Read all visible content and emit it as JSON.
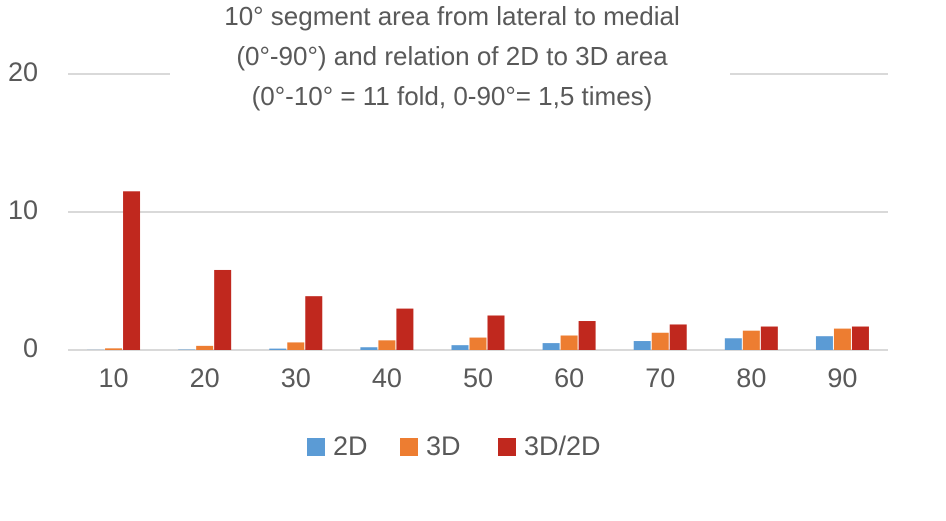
{
  "chart_data": {
    "type": "bar",
    "title": [
      "10° segment area from lateral to medial",
      "(0°-90°) and relation of 2D to 3D area",
      "(0°-10° = 11 fold, 0-90°= 1,5 times)"
    ],
    "categories": [
      "10",
      "20",
      "30",
      "40",
      "50",
      "60",
      "70",
      "80",
      "90"
    ],
    "series": [
      {
        "name": "2D",
        "color": "#5b9bd5",
        "values": [
          0.01,
          0.03,
          0.1,
          0.2,
          0.35,
          0.5,
          0.65,
          0.85,
          1.0
        ]
      },
      {
        "name": "3D",
        "color": "#ed7d31",
        "values": [
          0.12,
          0.3,
          0.55,
          0.7,
          0.9,
          1.05,
          1.25,
          1.4,
          1.55
        ]
      },
      {
        "name": "3D/2D",
        "color": "#c0281e",
        "values": [
          11.5,
          5.8,
          3.9,
          3.0,
          2.5,
          2.1,
          1.85,
          1.7,
          1.7
        ]
      }
    ],
    "ylim": [
      0,
      20
    ],
    "yticks": [
      0,
      10,
      20
    ],
    "grid": true,
    "legend": "bottom"
  }
}
